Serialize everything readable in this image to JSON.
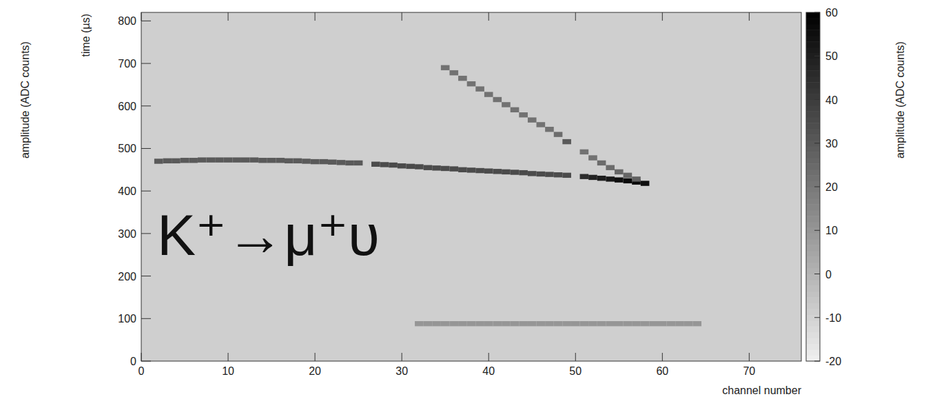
{
  "chart_data": {
    "type": "heatmap",
    "xlabel": "channel number",
    "ylabel": "time (µs)",
    "colorbar_label": "amplitude (ADC counts)",
    "side_label": "amplitude (ADC counts)",
    "annotation": "K⁺→μ⁺υ",
    "xlim": [
      0,
      76
    ],
    "ylim": [
      0,
      820
    ],
    "xticks": [
      0,
      10,
      20,
      30,
      40,
      50,
      60,
      70
    ],
    "yticks": [
      0,
      100,
      200,
      300,
      400,
      500,
      600,
      700,
      800
    ],
    "colorbar_range": [
      -20,
      60
    ],
    "colorbar_ticks": [
      -20,
      -10,
      0,
      10,
      20,
      30,
      40,
      50,
      60
    ],
    "series": [
      {
        "x": [
          2,
          3,
          4,
          5,
          6,
          7,
          8,
          9,
          10,
          11,
          12,
          13,
          14,
          15,
          16,
          17,
          18,
          19,
          20,
          21,
          22,
          23,
          24,
          25,
          27,
          28,
          29,
          30,
          31,
          32,
          33,
          34,
          35,
          36,
          37,
          38,
          39,
          40,
          41,
          42,
          43,
          44,
          45,
          46,
          47,
          48,
          49,
          51,
          52,
          53,
          54,
          55,
          56,
          57,
          58
        ],
        "values": [
          470,
          471,
          471,
          472,
          472,
          473,
          473,
          473,
          473,
          473,
          473,
          473,
          472,
          472,
          472,
          471,
          471,
          470,
          469,
          469,
          468,
          467,
          466,
          466,
          463,
          462,
          461,
          459,
          458,
          457,
          455,
          454,
          453,
          452,
          450,
          449,
          448,
          447,
          446,
          445,
          444,
          443,
          441,
          440,
          439,
          438,
          437,
          434,
          432,
          430,
          428,
          426,
          424,
          421,
          418
        ],
        "amplitude": [
          30,
          30,
          30,
          30,
          30,
          30,
          30,
          30,
          30,
          30,
          30,
          30,
          30,
          30,
          30,
          30,
          30,
          30,
          30,
          30,
          30,
          30,
          30,
          30,
          35,
          35,
          35,
          35,
          35,
          35,
          35,
          35,
          35,
          35,
          35,
          35,
          35,
          35,
          35,
          35,
          35,
          35,
          35,
          35,
          35,
          35,
          35,
          45,
          48,
          50,
          52,
          55,
          57,
          58,
          55
        ]
      },
      {
        "x": [
          35,
          36,
          37,
          38,
          39,
          40,
          41,
          42,
          43,
          44,
          45,
          46,
          47,
          48,
          49,
          51,
          52,
          53,
          54,
          55,
          56,
          57
        ],
        "values": [
          690,
          678,
          665,
          652,
          640,
          627,
          615,
          603,
          591,
          579,
          567,
          556,
          545,
          533,
          516,
          492,
          478,
          466,
          455,
          445,
          437,
          428
        ],
        "amplitude": [
          22,
          22,
          22,
          22,
          22,
          22,
          22,
          22,
          22,
          22,
          22,
          22,
          22,
          24,
          30,
          22,
          22,
          24,
          24,
          26,
          26,
          28
        ]
      },
      {
        "x": [
          32,
          33,
          34,
          35,
          36,
          37,
          38,
          39,
          40,
          41,
          42,
          43,
          44,
          45,
          46,
          47,
          48,
          49,
          50,
          51,
          52,
          53,
          54,
          55,
          56,
          57,
          58,
          59,
          60,
          61,
          62,
          63,
          64
        ],
        "values": [
          88,
          88,
          88,
          88,
          88,
          88,
          88,
          88,
          88,
          88,
          88,
          88,
          88,
          88,
          88,
          88,
          88,
          88,
          88,
          88,
          88,
          88,
          88,
          88,
          88,
          88,
          88,
          88,
          88,
          88,
          88,
          88,
          88
        ],
        "amplitude": [
          10,
          10,
          10,
          10,
          10,
          10,
          10,
          10,
          10,
          10,
          10,
          10,
          10,
          10,
          10,
          10,
          10,
          10,
          10,
          10,
          10,
          10,
          10,
          10,
          10,
          10,
          10,
          10,
          10,
          10,
          10,
          10,
          10
        ]
      }
    ]
  }
}
